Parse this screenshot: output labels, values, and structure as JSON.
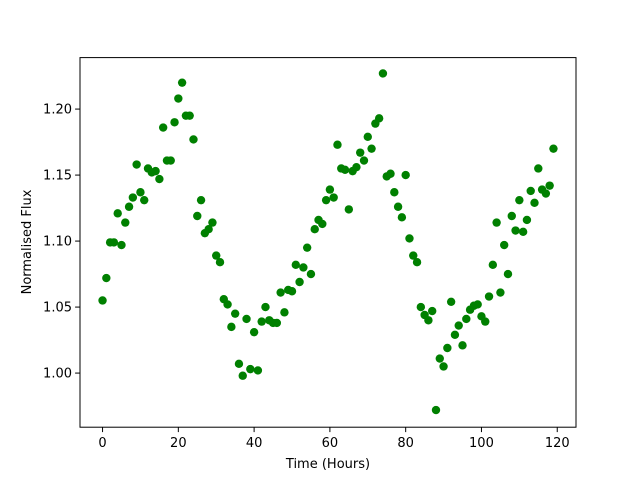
{
  "chart_data": {
    "type": "scatter",
    "xlabel": "Time (Hours)",
    "ylabel": "Normalised Flux",
    "color": "#008000",
    "x": [
      0,
      1,
      2,
      3,
      4,
      5,
      6,
      7,
      8,
      9,
      10,
      11,
      12,
      13,
      14,
      15,
      16,
      17,
      18,
      19,
      20,
      21,
      22,
      23,
      24,
      25,
      26,
      27,
      28,
      29,
      30,
      31,
      32,
      33,
      34,
      35,
      36,
      37,
      38,
      39,
      40,
      41,
      42,
      43,
      44,
      45,
      46,
      47,
      48,
      49,
      50,
      51,
      52,
      53,
      54,
      55,
      56,
      57,
      58,
      59,
      60,
      61,
      62,
      63,
      64,
      65,
      66,
      67,
      68,
      69,
      70,
      71,
      72,
      73,
      74,
      75,
      76,
      77,
      78,
      79,
      80,
      81,
      82,
      83,
      84,
      85,
      86,
      87,
      88,
      89,
      90,
      91,
      92,
      93,
      94,
      95,
      96,
      97,
      98,
      99,
      100,
      101,
      102,
      103,
      104,
      105,
      106,
      107,
      108,
      109,
      110,
      111,
      112,
      113,
      114,
      115,
      116,
      117,
      118,
      119
    ],
    "values": [
      1.055,
      1.072,
      1.099,
      1.099,
      1.121,
      1.097,
      1.114,
      1.126,
      1.133,
      1.158,
      1.137,
      1.131,
      1.155,
      1.152,
      1.153,
      1.147,
      1.186,
      1.161,
      1.161,
      1.19,
      1.208,
      1.22,
      1.195,
      1.195,
      1.177,
      1.119,
      1.131,
      1.106,
      1.109,
      1.114,
      1.089,
      1.084,
      1.056,
      1.052,
      1.035,
      1.045,
      1.007,
      0.998,
      1.041,
      1.003,
      1.031,
      1.002,
      1.039,
      1.05,
      1.04,
      1.038,
      1.038,
      1.061,
      1.046,
      1.063,
      1.062,
      1.082,
      1.069,
      1.08,
      1.095,
      1.075,
      1.109,
      1.116,
      1.113,
      1.131,
      1.139,
      1.133,
      1.173,
      1.155,
      1.154,
      1.124,
      1.153,
      1.156,
      1.167,
      1.161,
      1.179,
      1.17,
      1.189,
      1.193,
      1.227,
      1.149,
      1.151,
      1.137,
      1.126,
      1.118,
      1.15,
      1.102,
      1.089,
      1.084,
      1.05,
      1.044,
      1.04,
      1.047,
      0.972,
      1.011,
      1.005,
      1.019,
      1.054,
      1.029,
      1.036,
      1.021,
      1.041,
      1.048,
      1.051,
      1.052,
      1.043,
      1.039,
      1.058,
      1.082,
      1.114,
      1.061,
      1.097,
      1.075,
      1.119,
      1.108,
      1.131,
      1.107,
      1.116,
      1.138,
      1.129,
      1.155,
      1.139,
      1.136,
      1.142,
      1.17
    ],
    "xlim": [
      -5.95,
      124.95
    ],
    "xticks": [
      0,
      20,
      40,
      60,
      80,
      100,
      120
    ],
    "ylim": [
      0.959,
      1.239
    ],
    "yticks": [
      {
        "value": 1.0,
        "label": "1.00"
      },
      {
        "value": 1.05,
        "label": "1.05"
      },
      {
        "value": 1.1,
        "label": "1.10"
      },
      {
        "value": 1.15,
        "label": "1.15"
      },
      {
        "value": 1.2,
        "label": "1.20"
      }
    ]
  }
}
